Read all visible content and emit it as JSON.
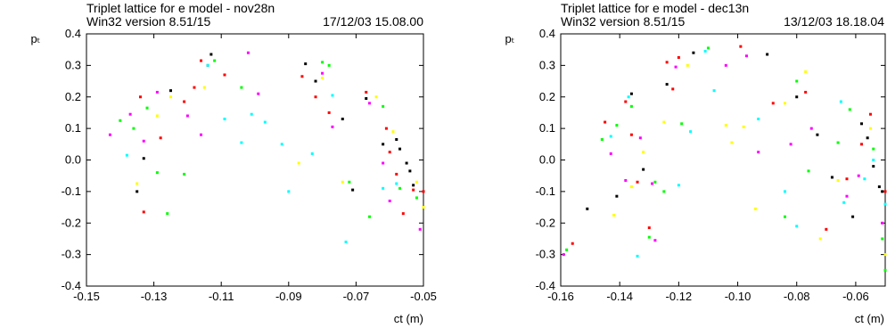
{
  "chart_data": [
    {
      "type": "scatter",
      "title_line1": "Triplet lattice for e model - nov28n",
      "title_line2_left": "Win32 version 8.51/15",
      "title_line2_right": "17/12/03  15.08.00",
      "ylabel": "pₜ",
      "xlabel": "ct (m)",
      "xlim": [
        -0.15,
        -0.05
      ],
      "ylim": [
        -0.4,
        0.4
      ],
      "xticks": [
        "-0.15",
        "-0.13",
        "-0.11",
        "-0.09",
        "-0.07",
        "-0.05"
      ],
      "xtick_values": [
        -0.15,
        -0.13,
        -0.11,
        -0.09,
        -0.07,
        -0.05
      ],
      "yticks": [
        "0.4",
        "0.3",
        "0.2",
        "0.1",
        "0.0",
        "-0.1",
        "-0.2",
        "-0.3",
        "-0.4"
      ],
      "ytick_values": [
        0.4,
        0.3,
        0.2,
        0.1,
        0.0,
        -0.1,
        -0.2,
        -0.3,
        -0.4
      ],
      "grid": false,
      "series": [
        {
          "color": "#ff0000",
          "points": [
            [
              -0.134,
              0.2
            ],
            [
              -0.133,
              -0.165
            ],
            [
              -0.128,
              0.07
            ],
            [
              -0.121,
              0.185
            ],
            [
              -0.118,
              0.23
            ],
            [
              -0.116,
              0.315
            ],
            [
              -0.114,
              0.3
            ],
            [
              -0.109,
              0.27
            ],
            [
              -0.086,
              0.265
            ],
            [
              -0.082,
              0.2
            ],
            [
              -0.078,
              0.15
            ],
            [
              -0.067,
              0.215
            ],
            [
              -0.061,
              0.1
            ],
            [
              -0.06,
              0.025
            ],
            [
              -0.058,
              -0.045
            ],
            [
              -0.056,
              -0.17
            ],
            [
              -0.053,
              -0.095
            ],
            [
              -0.05,
              -0.1
            ]
          ]
        },
        {
          "color": "#00ff00",
          "points": [
            [
              -0.14,
              0.125
            ],
            [
              -0.136,
              0.1
            ],
            [
              -0.132,
              0.165
            ],
            [
              -0.129,
              -0.04
            ],
            [
              -0.126,
              -0.17
            ],
            [
              -0.121,
              -0.045
            ],
            [
              -0.112,
              0.315
            ],
            [
              -0.104,
              0.23
            ],
            [
              -0.08,
              0.31
            ],
            [
              -0.078,
              0.3
            ],
            [
              -0.072,
              -0.07
            ],
            [
              -0.066,
              -0.18
            ],
            [
              -0.062,
              0.17
            ],
            [
              -0.057,
              -0.09
            ],
            [
              -0.052,
              -0.12
            ]
          ]
        },
        {
          "color": "#ff00ff",
          "points": [
            [
              -0.143,
              0.08
            ],
            [
              -0.137,
              0.145
            ],
            [
              -0.133,
              0.06
            ],
            [
              -0.129,
              0.215
            ],
            [
              -0.12,
              0.14
            ],
            [
              -0.116,
              0.08
            ],
            [
              -0.102,
              0.34
            ],
            [
              -0.099,
              0.21
            ],
            [
              -0.08,
              0.275
            ],
            [
              -0.077,
              0.105
            ],
            [
              -0.066,
              0.18
            ],
            [
              -0.062,
              -0.01
            ],
            [
              -0.06,
              -0.13
            ],
            [
              -0.051,
              -0.22
            ]
          ]
        },
        {
          "color": "#ffff00",
          "points": [
            [
              -0.135,
              -0.075
            ],
            [
              -0.129,
              0.14
            ],
            [
              -0.125,
              0.2
            ],
            [
              -0.115,
              0.23
            ],
            [
              -0.087,
              -0.01
            ],
            [
              -0.08,
              0.26
            ],
            [
              -0.074,
              -0.07
            ],
            [
              -0.064,
              0.2
            ],
            [
              -0.059,
              0.09
            ],
            [
              -0.052,
              -0.07
            ],
            [
              -0.05,
              -0.15
            ]
          ]
        },
        {
          "color": "#00ffff",
          "points": [
            [
              -0.138,
              0.015
            ],
            [
              -0.114,
              0.3
            ],
            [
              -0.109,
              0.13
            ],
            [
              -0.104,
              0.055
            ],
            [
              -0.101,
              0.145
            ],
            [
              -0.097,
              0.12
            ],
            [
              -0.092,
              0.05
            ],
            [
              -0.09,
              -0.1
            ],
            [
              -0.083,
              0.02
            ],
            [
              -0.077,
              0.205
            ],
            [
              -0.073,
              -0.26
            ],
            [
              -0.062,
              -0.09
            ],
            [
              -0.058,
              -0.075
            ]
          ]
        },
        {
          "color": "#000000",
          "points": [
            [
              -0.135,
              -0.1
            ],
            [
              -0.133,
              0.005
            ],
            [
              -0.125,
              0.22
            ],
            [
              -0.113,
              0.335
            ],
            [
              -0.085,
              0.305
            ],
            [
              -0.082,
              0.25
            ],
            [
              -0.074,
              0.13
            ],
            [
              -0.071,
              -0.095
            ],
            [
              -0.067,
              0.195
            ],
            [
              -0.062,
              0.05
            ],
            [
              -0.058,
              0.065
            ],
            [
              -0.057,
              0.035
            ],
            [
              -0.055,
              -0.01
            ],
            [
              -0.054,
              -0.035
            ],
            [
              -0.053,
              -0.08
            ]
          ]
        }
      ]
    },
    {
      "type": "scatter",
      "title_line1": "Triplet lattice for e model - dec13n",
      "title_line2_left": "Win32 version 8.51/15",
      "title_line2_right": "13/12/03  18.18.04",
      "ylabel": "pₜ",
      "xlabel": "ct (m)",
      "xlim": [
        -0.16,
        -0.05
      ],
      "ylim": [
        -0.4,
        0.4
      ],
      "xticks": [
        "-0.16",
        "-0.14",
        "-0.12",
        "-0.10",
        "-0.08",
        "-0.06"
      ],
      "xtick_values": [
        -0.16,
        -0.14,
        -0.12,
        -0.1,
        -0.08,
        -0.06
      ],
      "yticks": [
        "0.4",
        "0.3",
        "0.2",
        "0.1",
        "0.0",
        "-0.1",
        "-0.2",
        "-0.3",
        "-0.4"
      ],
      "ytick_values": [
        0.4,
        0.3,
        0.2,
        0.1,
        0.0,
        -0.1,
        -0.2,
        -0.3,
        -0.4
      ],
      "grid": false,
      "series": [
        {
          "color": "#ff0000",
          "points": [
            [
              -0.156,
              -0.265
            ],
            [
              -0.145,
              0.12
            ],
            [
              -0.138,
              0.185
            ],
            [
              -0.136,
              0.08
            ],
            [
              -0.134,
              -0.07
            ],
            [
              -0.13,
              -0.215
            ],
            [
              -0.124,
              0.31
            ],
            [
              -0.122,
              0.225
            ],
            [
              -0.12,
              0.325
            ],
            [
              -0.099,
              0.36
            ],
            [
              -0.088,
              0.18
            ],
            [
              -0.077,
              0.215
            ],
            [
              -0.07,
              -0.22
            ],
            [
              -0.063,
              -0.06
            ],
            [
              -0.058,
              0.05
            ],
            [
              -0.055,
              0.145
            ],
            [
              -0.05,
              -0.1
            ]
          ]
        },
        {
          "color": "#00ff00",
          "points": [
            [
              -0.158,
              -0.285
            ],
            [
              -0.146,
              0.065
            ],
            [
              -0.141,
              0.11
            ],
            [
              -0.136,
              0.17
            ],
            [
              -0.13,
              -0.245
            ],
            [
              -0.128,
              -0.07
            ],
            [
              -0.125,
              -0.1
            ],
            [
              -0.119,
              0.115
            ],
            [
              -0.11,
              0.355
            ],
            [
              -0.084,
              -0.18
            ],
            [
              -0.08,
              0.25
            ],
            [
              -0.076,
              -0.035
            ],
            [
              -0.066,
              0.055
            ],
            [
              -0.062,
              0.16
            ],
            [
              -0.054,
              0.035
            ],
            [
              -0.051,
              -0.25
            ],
            [
              -0.05,
              -0.35
            ]
          ]
        },
        {
          "color": "#ff00ff",
          "points": [
            [
              -0.159,
              -0.3
            ],
            [
              -0.143,
              0.02
            ],
            [
              -0.138,
              -0.065
            ],
            [
              -0.133,
              0.07
            ],
            [
              -0.129,
              -0.075
            ],
            [
              -0.128,
              -0.255
            ],
            [
              -0.121,
              0.295
            ],
            [
              -0.104,
              0.3
            ],
            [
              -0.097,
              0.33
            ],
            [
              -0.093,
              0.025
            ],
            [
              -0.082,
              0.05
            ],
            [
              -0.075,
              0.1
            ],
            [
              -0.063,
              -0.115
            ],
            [
              -0.059,
              -0.05
            ],
            [
              -0.051,
              -0.2
            ]
          ]
        },
        {
          "color": "#ffff00",
          "points": [
            [
              -0.142,
              -0.175
            ],
            [
              -0.136,
              -0.085
            ],
            [
              -0.132,
              0.025
            ],
            [
              -0.125,
              0.12
            ],
            [
              -0.117,
              0.3
            ],
            [
              -0.104,
              0.11
            ],
            [
              -0.102,
              0.055
            ],
            [
              -0.098,
              0.105
            ],
            [
              -0.094,
              -0.155
            ],
            [
              -0.084,
              0.18
            ],
            [
              -0.077,
              0.28
            ],
            [
              -0.072,
              -0.25
            ],
            [
              -0.066,
              -0.065
            ],
            [
              -0.055,
              0.1
            ],
            [
              -0.05,
              -0.3
            ]
          ]
        },
        {
          "color": "#00ffff",
          "points": [
            [
              -0.143,
              0.075
            ],
            [
              -0.137,
              0.2
            ],
            [
              -0.134,
              -0.305
            ],
            [
              -0.12,
              -0.08
            ],
            [
              -0.116,
              0.09
            ],
            [
              -0.111,
              0.345
            ],
            [
              -0.108,
              0.22
            ],
            [
              -0.093,
              0.13
            ],
            [
              -0.084,
              -0.1
            ],
            [
              -0.08,
              -0.21
            ],
            [
              -0.065,
              0.185
            ],
            [
              -0.064,
              -0.135
            ],
            [
              -0.057,
              -0.06
            ],
            [
              -0.054,
              0.0
            ],
            [
              -0.05,
              -0.14
            ]
          ]
        },
        {
          "color": "#000000",
          "points": [
            [
              -0.151,
              -0.155
            ],
            [
              -0.141,
              -0.115
            ],
            [
              -0.136,
              0.21
            ],
            [
              -0.132,
              -0.03
            ],
            [
              -0.124,
              0.24
            ],
            [
              -0.115,
              0.34
            ],
            [
              -0.09,
              0.335
            ],
            [
              -0.08,
              0.2
            ],
            [
              -0.073,
              0.08
            ],
            [
              -0.068,
              -0.055
            ],
            [
              -0.061,
              -0.18
            ],
            [
              -0.058,
              0.115
            ],
            [
              -0.056,
              0.07
            ],
            [
              -0.054,
              -0.02
            ],
            [
              -0.052,
              -0.085
            ],
            [
              -0.051,
              -0.1
            ]
          ]
        }
      ]
    }
  ]
}
